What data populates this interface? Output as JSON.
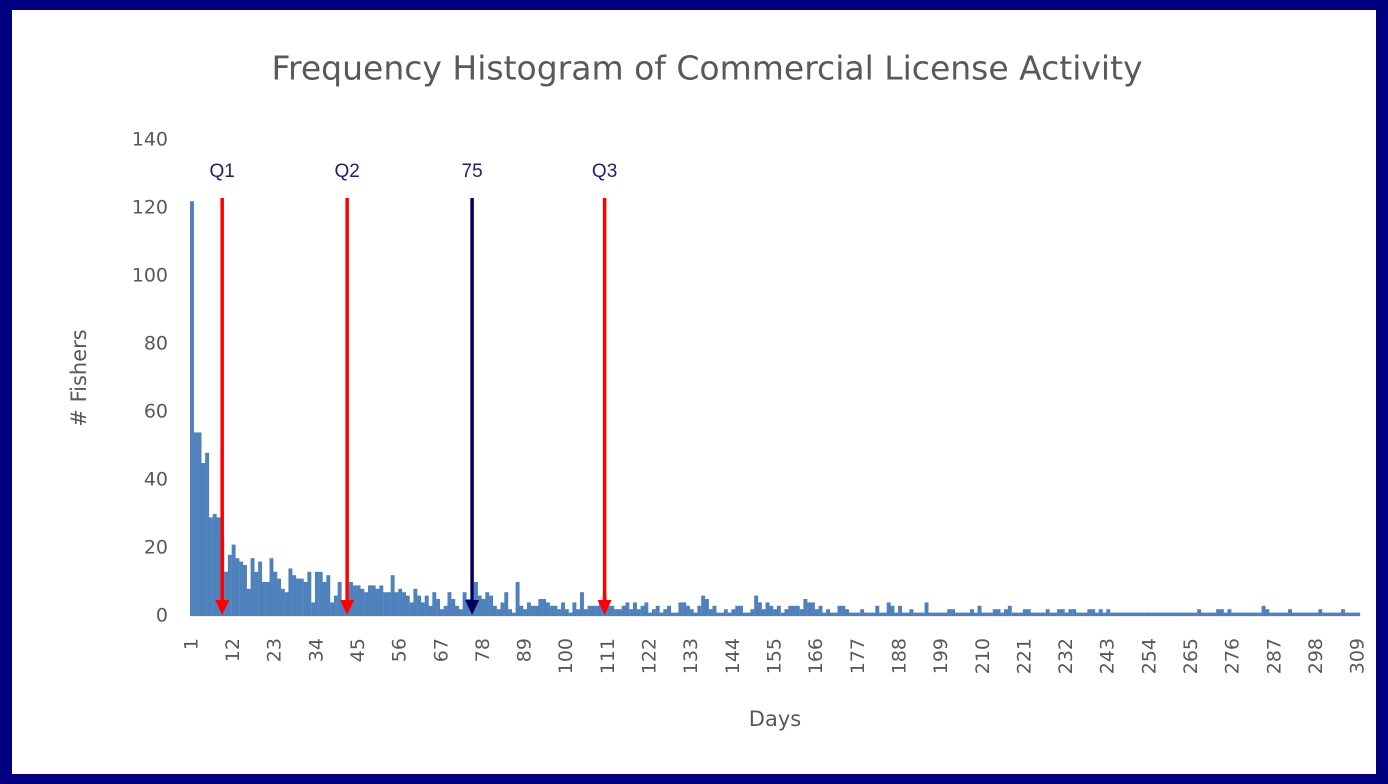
{
  "chart_data": {
    "type": "bar",
    "title": "Frequency Histogram of Commercial License Activity",
    "xlabel": "Days",
    "ylabel": "# Fishers",
    "color": "#4f81bd",
    "ylim": [
      0,
      140
    ],
    "yticks": [
      0,
      20,
      40,
      60,
      80,
      100,
      120,
      140
    ],
    "grid": false,
    "annotations": [
      {
        "label": "Q1",
        "x": 9,
        "color": "#ff0000"
      },
      {
        "label": "Q2",
        "x": 42,
        "color": "#ff0000"
      },
      {
        "label": "75",
        "x": 75,
        "color": "#000060"
      },
      {
        "label": "Q3",
        "x": 110,
        "color": "#ff0000"
      }
    ],
    "categories": [
      "1",
      null,
      null,
      null,
      null,
      null,
      null,
      null,
      null,
      null,
      null,
      "12",
      null,
      null,
      null,
      null,
      null,
      null,
      null,
      null,
      null,
      null,
      "23",
      null,
      null,
      null,
      null,
      null,
      null,
      null,
      null,
      null,
      null,
      "34",
      null,
      null,
      null,
      null,
      null,
      null,
      null,
      null,
      null,
      null,
      "45",
      null,
      null,
      null,
      null,
      null,
      null,
      null,
      null,
      null,
      null,
      "56",
      null,
      null,
      null,
      null,
      null,
      null,
      null,
      null,
      null,
      null,
      "67",
      null,
      null,
      null,
      null,
      null,
      null,
      null,
      null,
      null,
      null,
      "78",
      null,
      null,
      null,
      null,
      null,
      null,
      null,
      null,
      null,
      null,
      "89",
      null,
      null,
      null,
      null,
      null,
      null,
      null,
      null,
      null,
      null,
      "100",
      null,
      null,
      null,
      null,
      null,
      null,
      null,
      null,
      null,
      null,
      "111",
      null,
      null,
      null,
      null,
      null,
      null,
      null,
      null,
      null,
      null,
      "122",
      null,
      null,
      null,
      null,
      null,
      null,
      null,
      null,
      null,
      null,
      "133",
      null,
      null,
      null,
      null,
      null,
      null,
      null,
      null,
      null,
      null,
      "144",
      null,
      null,
      null,
      null,
      null,
      null,
      null,
      null,
      null,
      null,
      "155",
      null,
      null,
      null,
      null,
      null,
      null,
      null,
      null,
      null,
      null,
      "166",
      null,
      null,
      null,
      null,
      null,
      null,
      null,
      null,
      null,
      null,
      "177",
      null,
      null,
      null,
      null,
      null,
      null,
      null,
      null,
      null,
      null,
      "188",
      null,
      null,
      null,
      null,
      null,
      null,
      null,
      null,
      null,
      null,
      "199",
      null,
      null,
      null,
      null,
      null,
      null,
      null,
      null,
      null,
      null,
      "210",
      null,
      null,
      null,
      null,
      null,
      null,
      null,
      null,
      null,
      null,
      "221",
      null,
      null,
      null,
      null,
      null,
      null,
      null,
      null,
      null,
      null,
      "232",
      null,
      null,
      null,
      null,
      null,
      null,
      null,
      null,
      null,
      null,
      "243",
      null,
      null,
      null,
      null,
      null,
      null,
      null,
      null,
      null,
      null,
      "254",
      null,
      null,
      null,
      null,
      null,
      null,
      null,
      null,
      null,
      null,
      "265",
      null,
      null,
      null,
      null,
      null,
      null,
      null,
      null,
      null,
      null,
      "276",
      null,
      null,
      null,
      null,
      null,
      null,
      null,
      null,
      null,
      null,
      "287",
      null,
      null,
      null,
      null,
      null,
      null,
      null,
      null,
      null,
      null,
      "298",
      null,
      null,
      null,
      null,
      null,
      null,
      null,
      null,
      null,
      null,
      "309"
    ],
    "values": [
      122,
      54,
      54,
      45,
      48,
      29,
      30,
      29,
      23,
      13,
      18,
      21,
      17,
      16,
      15,
      8,
      17,
      13,
      16,
      10,
      10,
      17,
      13,
      11,
      8,
      7,
      14,
      12,
      11,
      11,
      10,
      13,
      4,
      13,
      13,
      10,
      12,
      4,
      6,
      10,
      4,
      3,
      10,
      9,
      9,
      8,
      7,
      9,
      9,
      8,
      9,
      7,
      7,
      12,
      7,
      8,
      7,
      6,
      4,
      8,
      6,
      4,
      6,
      3,
      7,
      5,
      2,
      3,
      7,
      5,
      3,
      2,
      7,
      5,
      4,
      10,
      6,
      5,
      7,
      6,
      3,
      2,
      4,
      7,
      2,
      1,
      10,
      3,
      2,
      4,
      3,
      3,
      5,
      5,
      4,
      3,
      3,
      2,
      4,
      2,
      1,
      4,
      2,
      7,
      2,
      3,
      3,
      3,
      4,
      6,
      3,
      3,
      2,
      2,
      3,
      4,
      2,
      4,
      2,
      3,
      4,
      1,
      2,
      3,
      1,
      2,
      3,
      1,
      1,
      4,
      4,
      3,
      2,
      1,
      3,
      6,
      5,
      2,
      3,
      1,
      1,
      2,
      1,
      2,
      3,
      3,
      1,
      1,
      2,
      6,
      4,
      2,
      4,
      3,
      2,
      3,
      1,
      2,
      3,
      3,
      3,
      2,
      5,
      4,
      4,
      2,
      3,
      1,
      2,
      1,
      1,
      3,
      3,
      2,
      1,
      1,
      1,
      2,
      1,
      1,
      1,
      3,
      1,
      1,
      4,
      3,
      1,
      3,
      1,
      1,
      2,
      1,
      1,
      1,
      4,
      1,
      1,
      1,
      1,
      1,
      2,
      2,
      1,
      1,
      1,
      1,
      2,
      1,
      3,
      1,
      1,
      1,
      2,
      2,
      1,
      2,
      3,
      1,
      1,
      1,
      2,
      2,
      1,
      1,
      1,
      1,
      2,
      1,
      1,
      2,
      2,
      1,
      2,
      2,
      1,
      1,
      1,
      2,
      2,
      1,
      2,
      1,
      2,
      1,
      1,
      1,
      1,
      1,
      1,
      1,
      1,
      1,
      1,
      1,
      1,
      1,
      1,
      1,
      1,
      1,
      1,
      1,
      1,
      1,
      1,
      1,
      2,
      1,
      1,
      1,
      1,
      2,
      2,
      1,
      2,
      1,
      1,
      1,
      1,
      1,
      1,
      1,
      1,
      3,
      2,
      1,
      1,
      1,
      1,
      1,
      2,
      1,
      1,
      1,
      1,
      1,
      1,
      1,
      2,
      1,
      1,
      1,
      1,
      1,
      2,
      1,
      1,
      1,
      1
    ]
  }
}
